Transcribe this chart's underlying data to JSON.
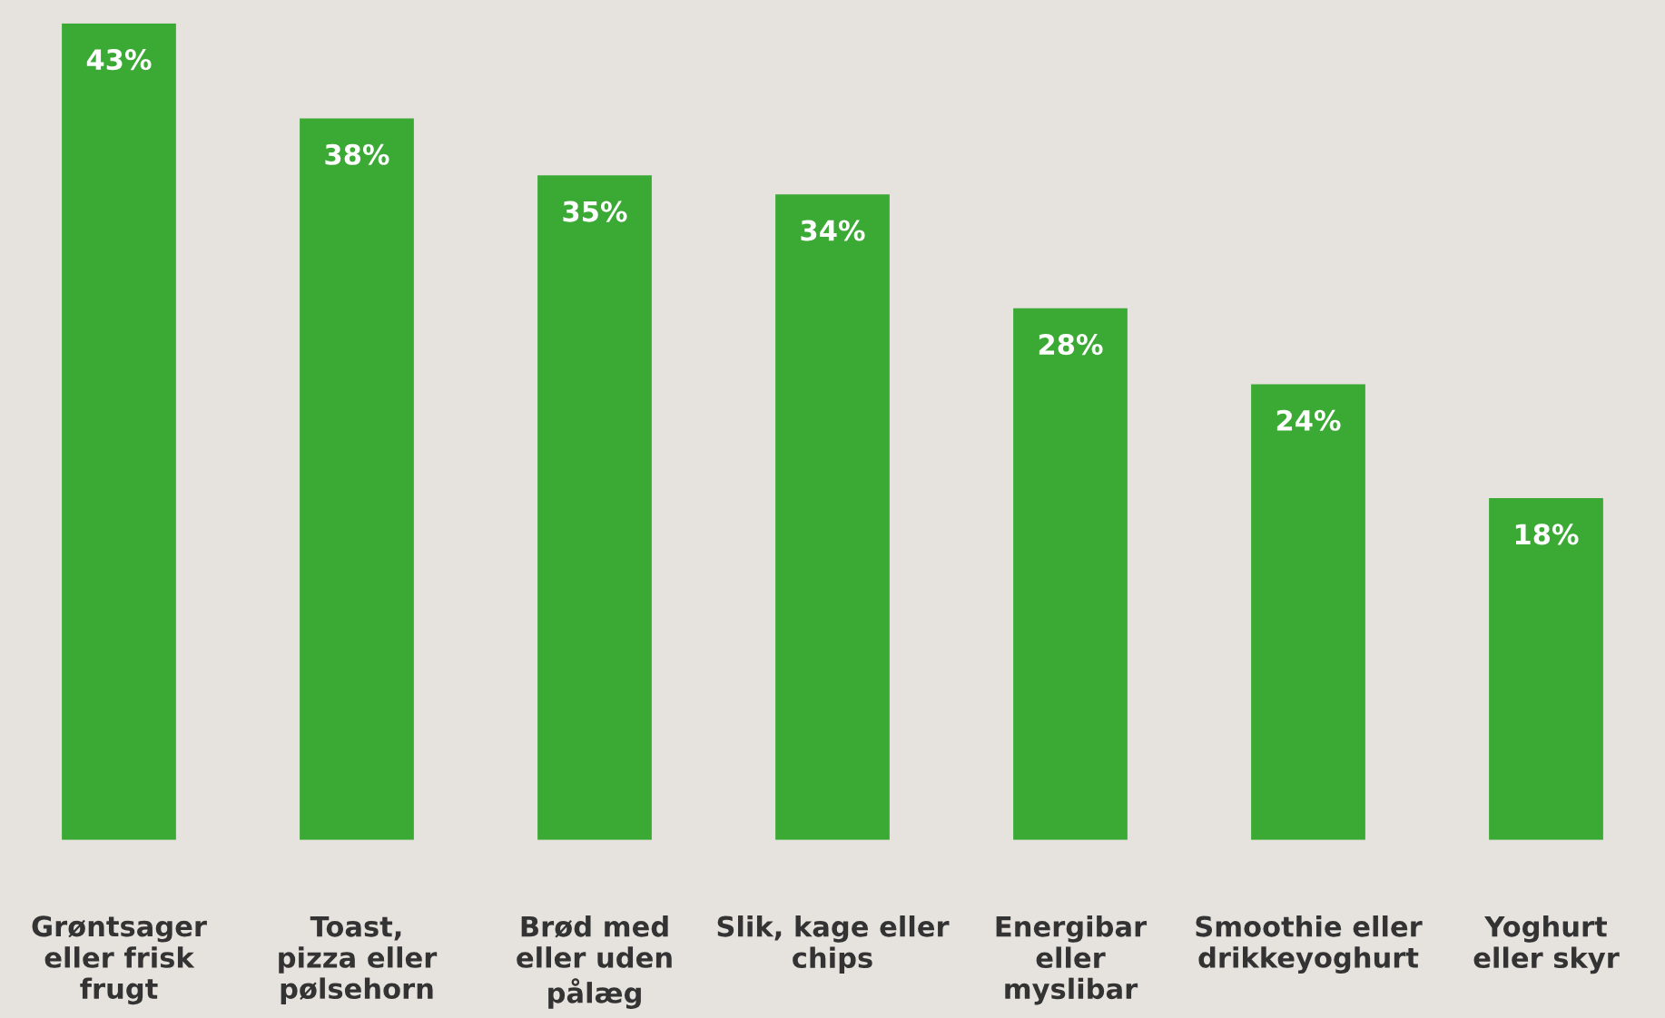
{
  "chart_data": {
    "type": "bar",
    "categories": [
      "Grøntsager\neller frisk\nfrugt",
      "Toast,\npizza eller\npølsehorn",
      "Brød med\neller uden\npålæg",
      "Slik, kage eller\nchips",
      "Energibar\neller\nmyslibar",
      "Smoothie eller\ndrikkeyoghurt",
      "Yoghurt\neller skyr"
    ],
    "values": [
      43,
      38,
      35,
      34,
      28,
      24,
      18
    ],
    "value_labels": [
      "43%",
      "38%",
      "35%",
      "34%",
      "28%",
      "24%",
      "18%"
    ],
    "color": "#3aaa35",
    "ylim": [
      0,
      43
    ],
    "grid": false,
    "legend": false
  }
}
